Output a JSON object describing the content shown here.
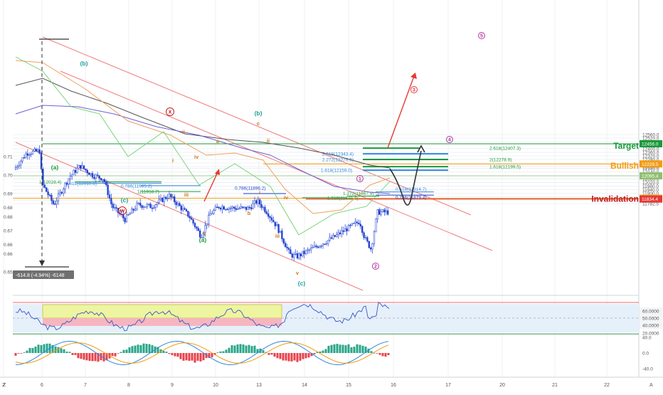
{
  "colors": {
    "bg": "#ffffff",
    "grid": "#eef0f4",
    "candle": "#1f3fd0",
    "channel": "#f07a7a",
    "green": "#1a9a3a",
    "lightGreen": "#6fcf6f",
    "blue": "#2f86e0",
    "orange": "#f39c12",
    "red": "#e53935",
    "purple": "#b23aa2",
    "teal": "#1b9e9a",
    "brown": "#d07a1a",
    "darkRed": "#c21f1f",
    "axisText": "#555555",
    "ema50": "#6f5fd6",
    "ema200": "#555555",
    "ema21": "#f0a060"
  },
  "chart_data": [
    {
      "type": "candlestick",
      "price_scale": {
        "left_ticks": [
          "0.71",
          "0.70",
          "0.69",
          "0.68",
          "0.68",
          "0.67",
          "0.66",
          "0.66",
          "0.65"
        ],
        "right_ticks": [
          "12560.0",
          "12520.0",
          "12480.0",
          "12440.0",
          "12400.0",
          "12360.0",
          "12320.0",
          "12280.0",
          "12240.0",
          "12200.0",
          "12180.0",
          "12140.0",
          "12100.0",
          "12060.0",
          "12020.0",
          "11980.0",
          "11940.0",
          "11900.0",
          "11860.0",
          "11822.0",
          "11782.5"
        ],
        "right_tick_values": [
          12560,
          12520,
          12480,
          12440,
          12400,
          12360,
          12320,
          12280,
          12240,
          12200,
          12180,
          12140,
          12100,
          12060,
          12020,
          11980,
          11940,
          11900,
          11860,
          11822,
          11782.5
        ],
        "ylim": [
          11775,
          12575
        ]
      },
      "time_axis": {
        "labels": [
          "2",
          "6",
          "7",
          "8",
          "9",
          "10",
          "13",
          "14",
          "15",
          "16",
          "17",
          "20",
          "21",
          "22"
        ],
        "x_values": [
          2,
          6,
          7,
          8,
          9,
          10,
          13,
          14,
          15,
          16,
          17,
          20,
          21,
          22
        ]
      },
      "price_badges": [
        {
          "text": "12456.0",
          "value": 12456.0,
          "color": "#1a9a3a"
        },
        {
          "text": "12229.5",
          "value": 12229.5,
          "color": "#f39c12"
        },
        {
          "text": "12095.4",
          "value": 12095.4,
          "color": "#8fbf6f"
        },
        {
          "text": "11843.5",
          "value": 11843.5,
          "color": "#f39c12"
        },
        {
          "text": "11834.4",
          "value": 11834.4,
          "color": "#e53935"
        }
      ],
      "level_tags": [
        {
          "text": "Target",
          "value": 12440,
          "color": "#1a9a3a"
        },
        {
          "text": "Bullish",
          "value": 12215,
          "color": "#f39c12"
        },
        {
          "text": "Invalidation",
          "value": 11845,
          "color": "#c21f1f"
        }
      ],
      "fib_labels": [
        {
          "text": "2.618(12407.3)",
          "value": 12407.3,
          "color": "#1a9a3a"
        },
        {
          "text": "2.618(12343.4)",
          "value": 12343.4,
          "color": "#2f86e0"
        },
        {
          "text": "2.272(12279.6)",
          "value": 12279.6,
          "color": "#2f86e0"
        },
        {
          "text": "2(12278.9)",
          "value": 12278.9,
          "color": "#1a9a3a"
        },
        {
          "text": "1.618(12199.5)",
          "value": 12199.5,
          "color": "#1a9a3a"
        },
        {
          "text": "1.618(12159.0)",
          "value": 12159.0,
          "color": "#2f86e0"
        },
        {
          "text": "1(12028.4)",
          "value": 12028.4,
          "color": "#1a9a3a"
        },
        {
          "text": "1.618(12010.6)",
          "value": 12010.6,
          "color": "#2f86e0"
        },
        {
          "text": "0.786(11985.2)",
          "value": 11985.2,
          "color": "#2f86e0"
        },
        {
          "text": "1(11918.7)",
          "value": 11918.7,
          "color": "#1a9a3a"
        },
        {
          "text": "0.786(11896.2)",
          "value": 11896.2,
          "color": "#1f3fd0"
        },
        {
          "text": "1.272(11867.9)",
          "value": 11867.9,
          "color": "#1a9a3a"
        },
        {
          "text": "1.618(11848.6)",
          "value": 11848.6,
          "color": "#1a9a3a"
        },
        {
          "text": "0.618(11914.7)",
          "value": 11914.7,
          "color": "#2f86e0"
        },
        {
          "text": "0.786(11879.4)",
          "value": 11879.4,
          "color": "#1f3fd0"
        }
      ],
      "wave_labels": [
        {
          "text": "(b)",
          "color": "#1b9e9a"
        },
        {
          "text": "(a)",
          "color": "#1a9a3a"
        },
        {
          "text": "(c)",
          "color": "#1b9e9a"
        },
        {
          "text": "(a)",
          "color": "#1a9a3a"
        },
        {
          "text": "(b)",
          "color": "#1b9e9a"
        },
        {
          "text": "(c)",
          "color": "#1b9e9a"
        },
        {
          "text": "x",
          "color": "#c21f1f"
        },
        {
          "text": "w",
          "color": "#c21f1f"
        },
        {
          "text": "ii",
          "color": "#d07a1a"
        },
        {
          "text": "i",
          "color": "#d07a1a"
        },
        {
          "text": "iv",
          "color": "#d07a1a"
        },
        {
          "text": "iii",
          "color": "#d07a1a"
        },
        {
          "text": "v",
          "color": "#d07a1a"
        },
        {
          "text": "a",
          "color": "#d07a1a"
        },
        {
          "text": "b",
          "color": "#d07a1a"
        },
        {
          "text": "c",
          "color": "#d07a1a"
        },
        {
          "text": "ii",
          "color": "#d07a1a"
        },
        {
          "text": "i",
          "color": "#d07a1a"
        },
        {
          "text": "iv",
          "color": "#d07a1a"
        },
        {
          "text": "iii",
          "color": "#d07a1a"
        },
        {
          "text": "v",
          "color": "#d07a1a"
        },
        {
          "text": "1",
          "color": "#b23aa2"
        },
        {
          "text": "2",
          "color": "#b23aa2"
        },
        {
          "text": "3",
          "color": "#e53935"
        },
        {
          "text": "4",
          "color": "#b23aa2"
        },
        {
          "text": "5",
          "color": "#b23aa2"
        }
      ],
      "measure_label": "-614.8 (-4.94%) -6148"
    },
    {
      "type": "line",
      "name": "RSI",
      "ticks": [
        "60.0000",
        "50.0000",
        "40.0000",
        "20.0000"
      ],
      "tick_values": [
        60,
        50,
        40,
        20
      ],
      "ylim": [
        15,
        90
      ]
    },
    {
      "type": "bar",
      "name": "MACD",
      "ticks": [
        "40.0",
        "0.0",
        "-40.0"
      ],
      "tick_values": [
        40,
        0,
        -40
      ],
      "ylim": [
        -55,
        50
      ]
    }
  ],
  "corner": {
    "left": "Z",
    "right": "A"
  }
}
